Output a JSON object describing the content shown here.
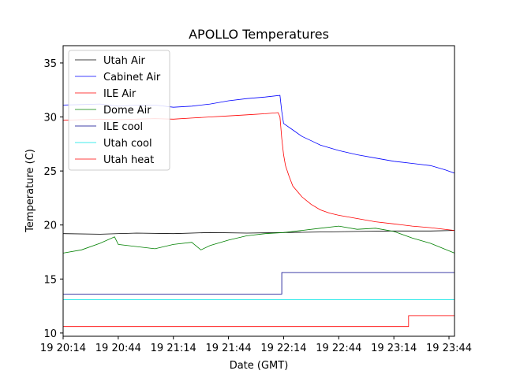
{
  "chart_data": {
    "type": "line",
    "title": "APOLLO Temperatures",
    "xlabel": "Date (GMT)",
    "ylabel": "Temperature (C)",
    "xlim": [
      0,
      213
    ],
    "ylim": [
      9.7,
      36.6
    ],
    "x_tick_positions": [
      0,
      30,
      60,
      90,
      120,
      150,
      180,
      210
    ],
    "x_tick_labels": [
      "19 20:14",
      "19 20:44",
      "19 21:14",
      "19 21:44",
      "19 22:14",
      "19 22:44",
      "19 23:14",
      "19 23:44"
    ],
    "y_ticks": [
      10,
      15,
      20,
      25,
      30,
      35
    ],
    "legend_position": "top-left",
    "series": [
      {
        "name": "Utah Air",
        "color": "#000000",
        "x": [
          0,
          20,
          40,
          60,
          80,
          100,
          120,
          140,
          160,
          180,
          200,
          213
        ],
        "y": [
          19.2,
          19.15,
          19.25,
          19.2,
          19.3,
          19.25,
          19.3,
          19.35,
          19.4,
          19.45,
          19.45,
          19.5
        ]
      },
      {
        "name": "Cabinet Air",
        "color": "#0000ff",
        "x": [
          0,
          10,
          20,
          30,
          40,
          50,
          60,
          70,
          80,
          90,
          100,
          110,
          118,
          119,
          120,
          125,
          130,
          135,
          140,
          150,
          160,
          170,
          180,
          190,
          200,
          208,
          213
        ],
        "y": [
          31.1,
          31.15,
          31.2,
          31.0,
          31.1,
          31.1,
          30.9,
          31.0,
          31.2,
          31.5,
          31.7,
          31.85,
          32.0,
          30.5,
          29.4,
          28.8,
          28.2,
          27.8,
          27.4,
          26.9,
          26.5,
          26.2,
          25.9,
          25.7,
          25.5,
          25.1,
          24.8
        ]
      },
      {
        "name": "ILE Air",
        "color": "#ff0000",
        "x": [
          0,
          10,
          20,
          30,
          40,
          50,
          60,
          70,
          80,
          90,
          100,
          110,
          117,
          118,
          119,
          120,
          121,
          123,
          125,
          130,
          135,
          140,
          145,
          150,
          160,
          170,
          180,
          190,
          200,
          213
        ],
        "y": [
          29.7,
          29.75,
          29.8,
          29.75,
          29.8,
          29.85,
          29.8,
          29.9,
          30.0,
          30.1,
          30.2,
          30.3,
          30.4,
          30.0,
          28.0,
          26.5,
          25.5,
          24.5,
          23.6,
          22.6,
          21.9,
          21.4,
          21.1,
          20.9,
          20.6,
          20.3,
          20.1,
          19.9,
          19.75,
          19.5
        ]
      },
      {
        "name": "Dome Air",
        "color": "#008000",
        "x": [
          0,
          10,
          20,
          28,
          30,
          40,
          50,
          60,
          70,
          75,
          80,
          90,
          100,
          110,
          120,
          130,
          140,
          150,
          160,
          170,
          180,
          190,
          200,
          213
        ],
        "y": [
          17.4,
          17.7,
          18.3,
          18.9,
          18.2,
          18.0,
          17.8,
          18.2,
          18.4,
          17.7,
          18.1,
          18.6,
          19.0,
          19.2,
          19.3,
          19.5,
          19.7,
          19.9,
          19.6,
          19.7,
          19.4,
          18.8,
          18.3,
          17.4
        ]
      },
      {
        "name": "ILE cool",
        "color": "#00008b",
        "x": [
          0,
          119,
          119,
          213
        ],
        "y": [
          13.6,
          13.6,
          15.6,
          15.6
        ]
      },
      {
        "name": "Utah cool",
        "color": "#00e5e5",
        "x": [
          0,
          213
        ],
        "y": [
          13.1,
          13.1
        ]
      },
      {
        "name": "Utah heat",
        "color": "#ff0000",
        "x": [
          0,
          188,
          188,
          213
        ],
        "y": [
          10.6,
          10.6,
          11.6,
          11.6
        ]
      }
    ]
  }
}
